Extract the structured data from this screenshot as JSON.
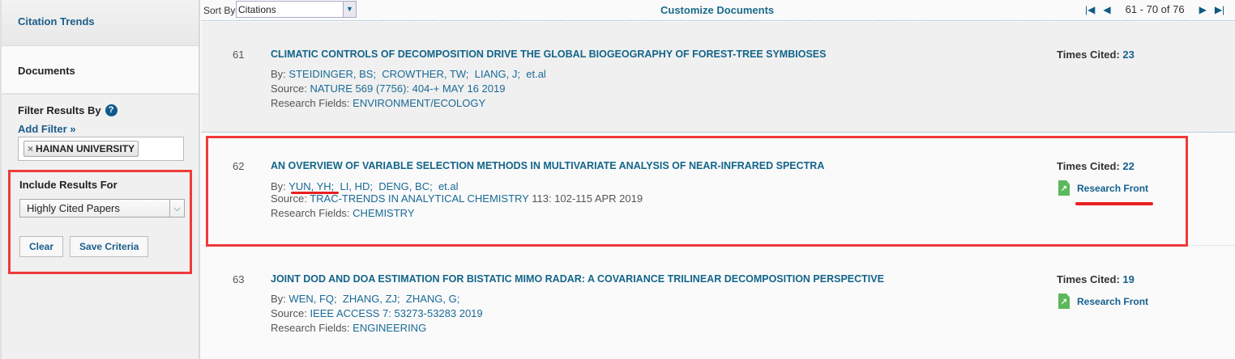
{
  "sidebar": {
    "nav": [
      "Citation Trends",
      "Documents"
    ],
    "filter_title": "Filter Results By",
    "help": "?",
    "add_filter": "Add Filter »",
    "chip": "HAINAN UNIVERSITY",
    "include_title": "Include Results For",
    "include_value": "Highly Cited Papers",
    "clear": "Clear",
    "save": "Save Criteria"
  },
  "toolbar": {
    "sort_label": "Sort By",
    "sort_value": "Citations",
    "customize": "Customize Documents",
    "range": "61 - 70 of 76"
  },
  "records": [
    {
      "num": "61",
      "title": "CLIMATIC CONTROLS OF DECOMPOSITION DRIVE THE GLOBAL BIOGEOGRAPHY OF FOREST-TREE SYMBIOSES",
      "by_label": "By:",
      "authors": [
        "STEIDINGER, BS;",
        "CROWTHER, TW;",
        "LIANG, J;",
        "et.al"
      ],
      "source_label": "Source:",
      "source": "NATURE 569 (7756): 404-+ MAY 16 2019",
      "fields_label": "Research Fields:",
      "fields": "ENVIRONMENT/ECOLOGY",
      "cited_label": "Times Cited:",
      "cited": "23"
    },
    {
      "num": "62",
      "title": "AN OVERVIEW OF VARIABLE SELECTION METHODS IN MULTIVARIATE ANALYSIS OF NEAR-INFRARED SPECTRA",
      "by_label": "By:",
      "authors": [
        "YUN, YH;",
        "LI, HD;",
        "DENG, BC;",
        "et.al"
      ],
      "source_label": "Source:",
      "source": "TRAC-TRENDS IN ANALYTICAL CHEMISTRY",
      "source_rest": "113: 102-115 APR 2019",
      "fields_label": "Research Fields:",
      "fields": "CHEMISTRY",
      "cited_label": "Times Cited:",
      "cited": "22",
      "front": "Research Front"
    },
    {
      "num": "63",
      "title": "JOINT DOD AND DOA ESTIMATION FOR BISTATIC MIMO RADAR: A COVARIANCE TRILINEAR DECOMPOSITION PERSPECTIVE",
      "by_label": "By:",
      "authors": [
        "WEN, FQ;",
        "ZHANG, ZJ;",
        "ZHANG, G;"
      ],
      "source_label": "Source:",
      "source": "IEEE ACCESS 7: 53273-53283 2019",
      "fields_label": "Research Fields:",
      "fields": "ENGINEERING",
      "cited_label": "Times Cited:",
      "cited": "19",
      "front": "Research Front"
    }
  ]
}
